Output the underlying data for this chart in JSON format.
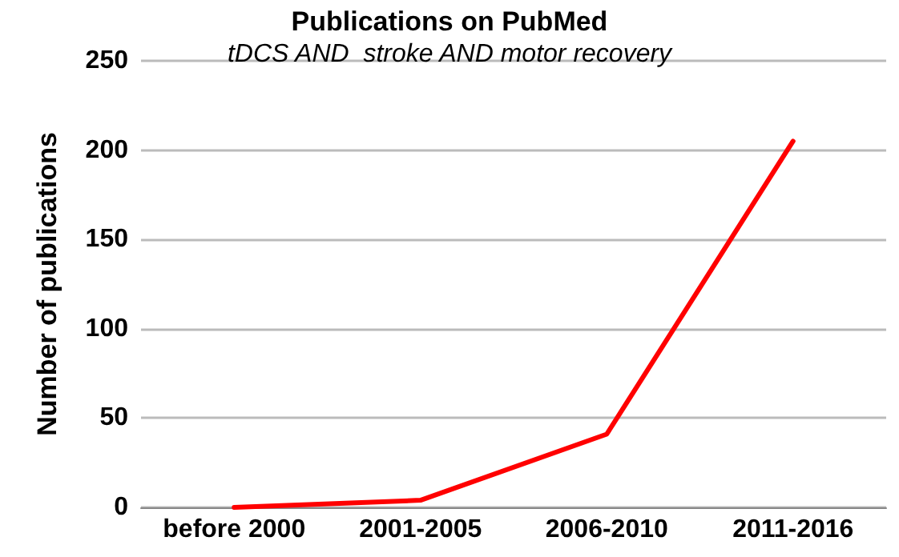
{
  "chart_data": {
    "type": "line",
    "title": "Publications on PubMed",
    "subtitle": "tDCS AND  stroke AND motor recovery",
    "ylabel": "Number of publications",
    "categories": [
      "before 2000",
      "2001-2005",
      "2006-2010",
      "2011-2016"
    ],
    "series": [
      {
        "color": "#ff0000",
        "values": [
          0,
          4,
          41,
          205
        ]
      }
    ],
    "ylim": [
      0,
      250
    ],
    "yticks": [
      0,
      50,
      100,
      150,
      200,
      250
    ],
    "grid": "y",
    "marker": "none",
    "line_style": "solid"
  }
}
